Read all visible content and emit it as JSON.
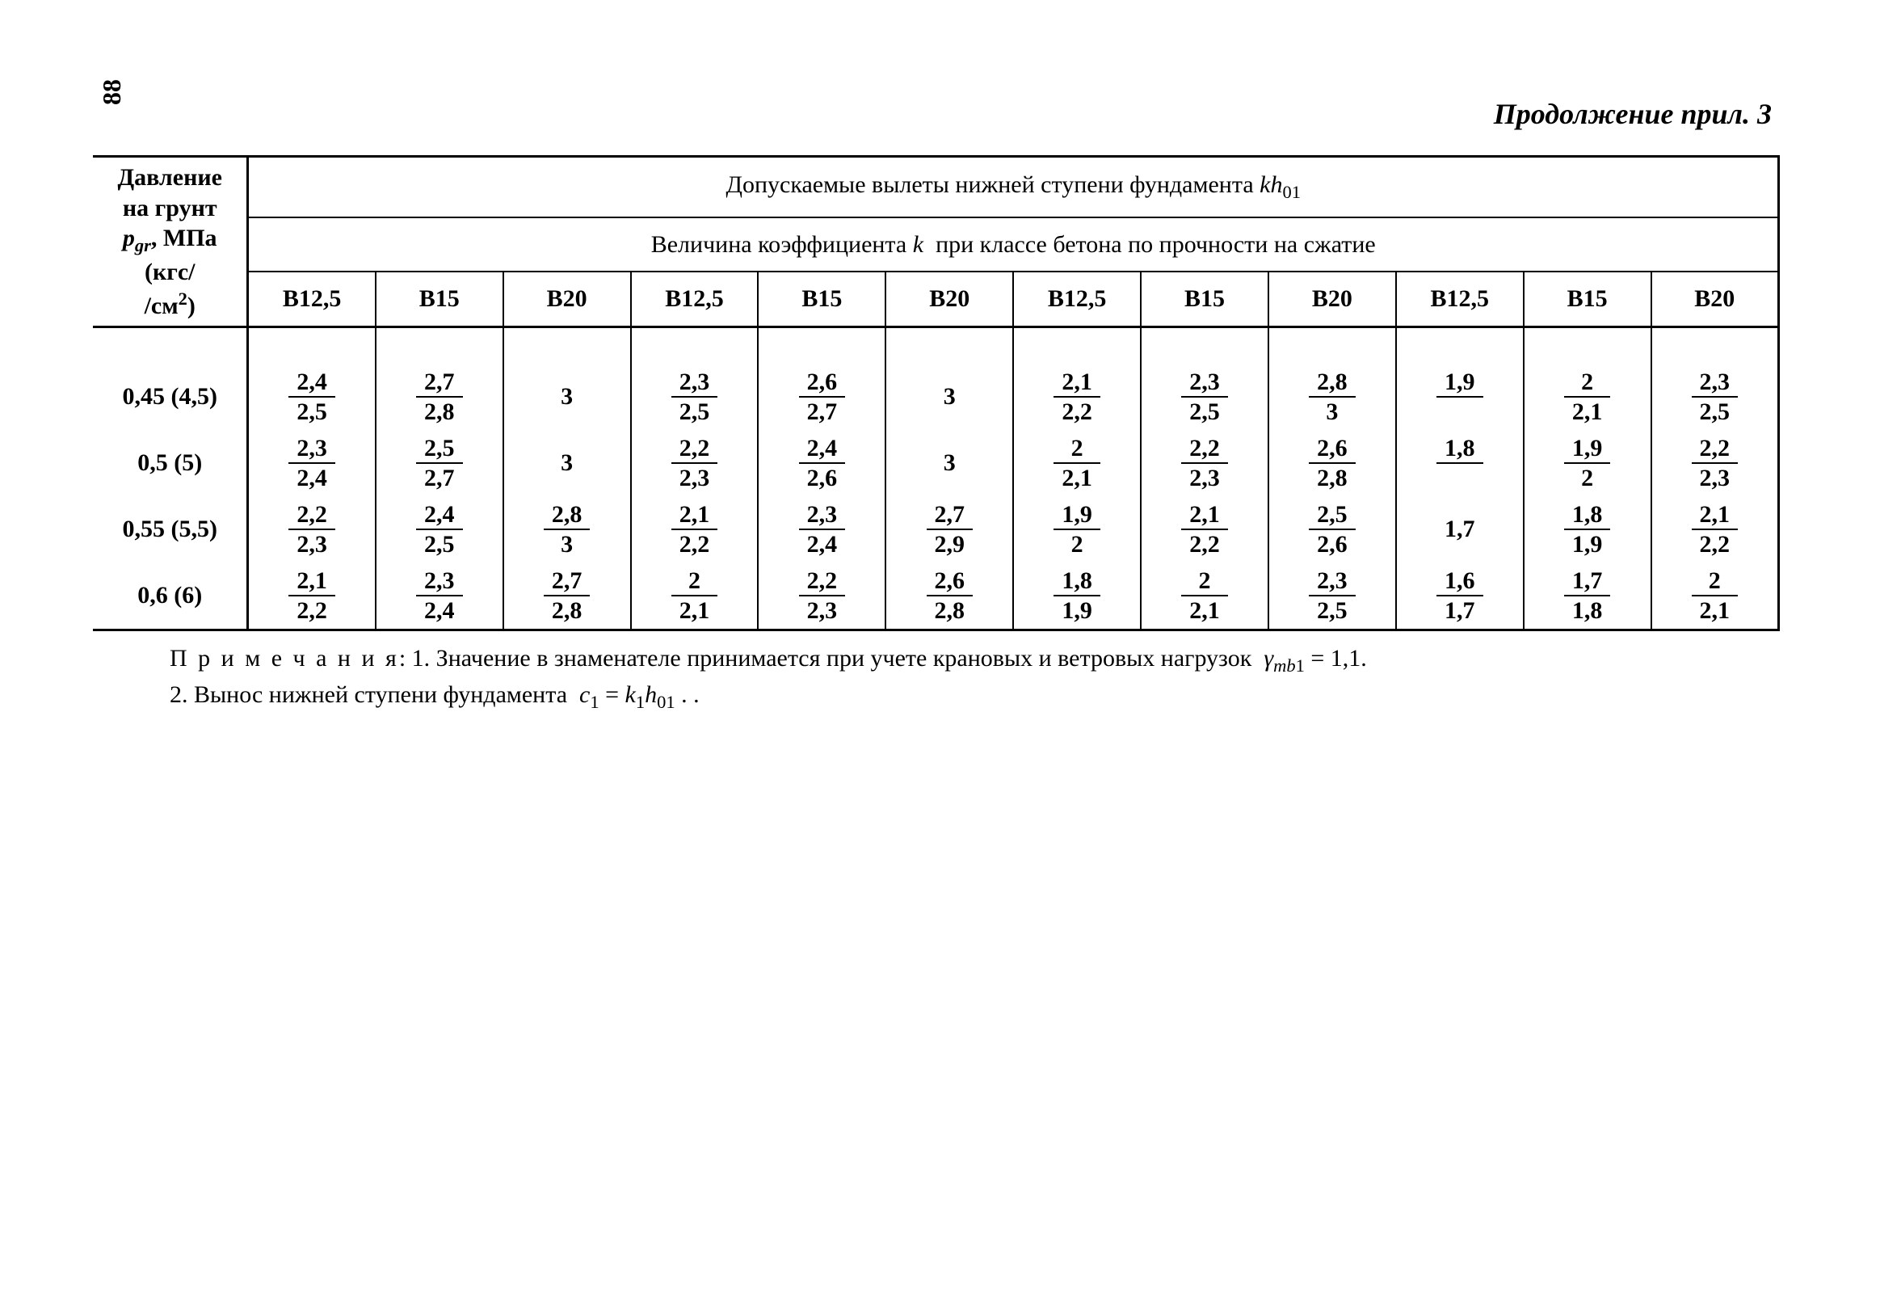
{
  "page_number": "88",
  "continuation_label": "Продолжение прил. 3",
  "header": {
    "pressure_label_html": "Давление<br>на грунт<br><span class='ital'>p<span class='sub'>gr</span></span>, МПа<br>(кгс/<br>/см<span class='sup'>2</span>)",
    "top_span_html": "Допускаемые вылеты нижней ступени фундамента <span class='ital'>kh</span><span class='sub'>01</span>",
    "mid_span_html": "Величина коэффициента <span class='ital'>k</span>&nbsp; при классе бетона по прочности на сжатие",
    "class_labels": [
      "В12,5",
      "В15",
      "В20",
      "В12,5",
      "В15",
      "В20",
      "В12,5",
      "В15",
      "В20",
      "В12,5",
      "В15",
      "В20"
    ]
  },
  "rows": [
    {
      "label": "0,45 (4,5)",
      "cells": [
        {
          "num": "2,4",
          "den": "2,5"
        },
        {
          "num": "2,7",
          "den": "2,8"
        },
        {
          "plain": "3"
        },
        {
          "num": "2,3",
          "den": "2,5"
        },
        {
          "num": "2,6",
          "den": "2,7"
        },
        {
          "plain": "3"
        },
        {
          "num": "2,1",
          "den": "2,2"
        },
        {
          "num": "2,3",
          "den": "2,5"
        },
        {
          "num": "2,8",
          "den": "3"
        },
        {
          "num": "1,9",
          "den": ""
        },
        {
          "num": "2",
          "den": "2,1"
        },
        {
          "num": "2,3",
          "den": "2,5"
        }
      ]
    },
    {
      "label": "0,5  (5)",
      "cells": [
        {
          "num": "2,3",
          "den": "2,4"
        },
        {
          "num": "2,5",
          "den": "2,7"
        },
        {
          "plain": "3"
        },
        {
          "num": "2,2",
          "den": "2,3"
        },
        {
          "num": "2,4",
          "den": "2,6"
        },
        {
          "plain": "3"
        },
        {
          "num": "2",
          "den": "2,1"
        },
        {
          "num": "2,2",
          "den": "2,3"
        },
        {
          "num": "2,6",
          "den": "2,8"
        },
        {
          "num": "1,8",
          "den": ""
        },
        {
          "num": "1,9",
          "den": "2"
        },
        {
          "num": "2,2",
          "den": "2,3"
        }
      ]
    },
    {
      "label": "0,55 (5,5)",
      "cells": [
        {
          "num": "2,2",
          "den": "2,3"
        },
        {
          "num": "2,4",
          "den": "2,5"
        },
        {
          "num": "2,8",
          "den": "3"
        },
        {
          "num": "2,1",
          "den": "2,2"
        },
        {
          "num": "2,3",
          "den": "2,4"
        },
        {
          "num": "2,7",
          "den": "2,9"
        },
        {
          "num": "1,9",
          "den": "2"
        },
        {
          "num": "2,1",
          "den": "2,2"
        },
        {
          "num": "2,5",
          "den": "2,6"
        },
        {
          "plain": "1,7"
        },
        {
          "num": "1,8",
          "den": "1,9"
        },
        {
          "num": "2,1",
          "den": "2,2"
        }
      ]
    },
    {
      "label": "0,6  (6)",
      "cells": [
        {
          "num": "2,1",
          "den": "2,2"
        },
        {
          "num": "2,3",
          "den": "2,4"
        },
        {
          "num": "2,7",
          "den": "2,8"
        },
        {
          "num": "2",
          "den": "2,1"
        },
        {
          "num": "2,2",
          "den": "2,3"
        },
        {
          "num": "2,6",
          "den": "2,8"
        },
        {
          "num": "1,8",
          "den": "1,9"
        },
        {
          "num": "2",
          "den": "2,1"
        },
        {
          "num": "2,3",
          "den": "2,5"
        },
        {
          "num": "1,6",
          "den": "1,7"
        },
        {
          "num": "1,7",
          "den": "1,8"
        },
        {
          "num": "2",
          "den": "2,1"
        }
      ]
    }
  ],
  "notes": {
    "line1_html": "<span class='spaced'>П р и м е ч а н и я</span>: 1. Значение в знаменателе принимается при учете крановых и ветровых нагрузок &nbsp;<span class='ital'>γ<span class='sub'>mb</span></span><span class='sub'>1</span> = 1,1.",
    "line2_html": "2. Вынос нижней ступени фундамента &nbsp;<span class='ital'>c</span><span class='sub'>1</span> = <span class='ital'>k</span><span class='sub'>1</span><span class='ital'>h</span><span class='sub'>01</span> . ."
  },
  "style": {
    "font_family": "Times New Roman",
    "text_color": "#000000",
    "background_color": "#ffffff",
    "base_font_size_pt": 30,
    "border_color": "#000000"
  }
}
